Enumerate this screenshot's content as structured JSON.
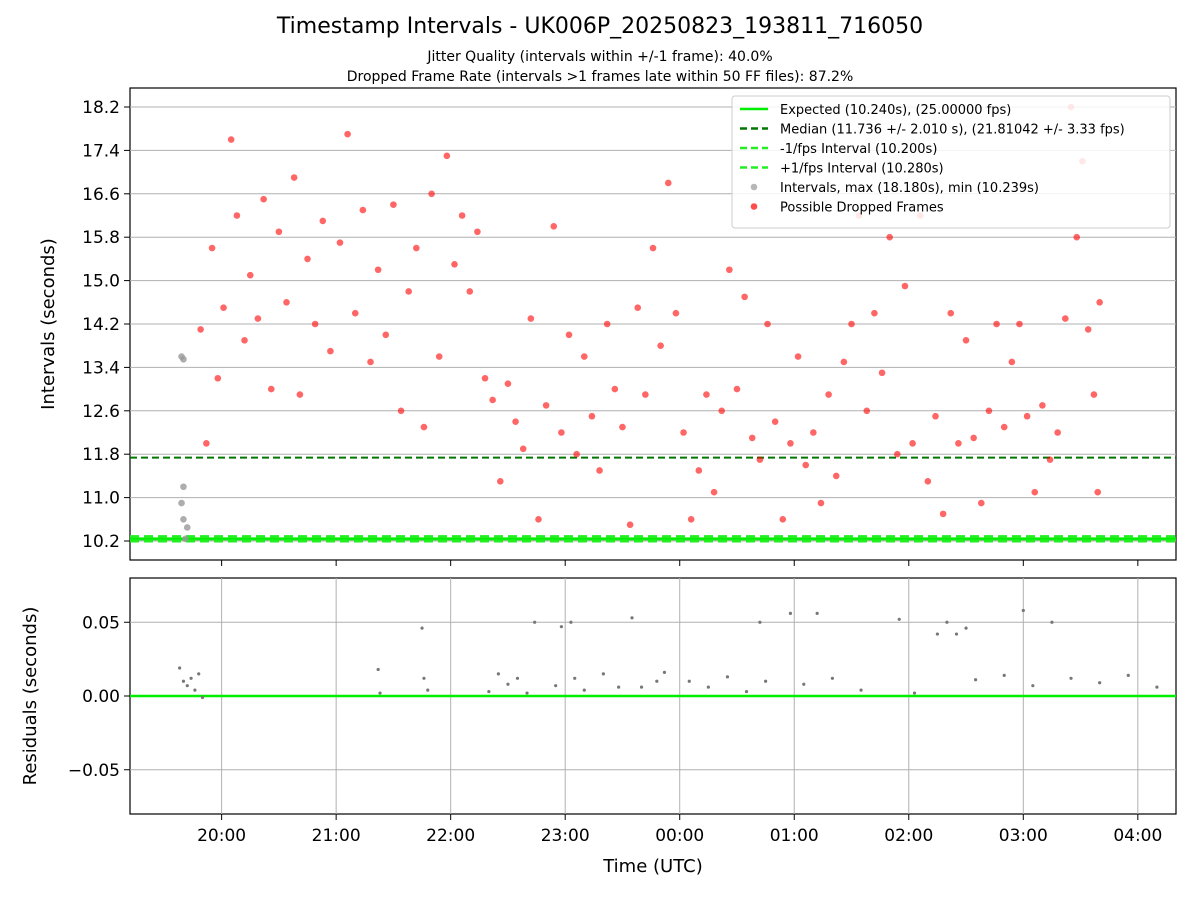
{
  "title": "Timestamp Intervals - UK006P_20250823_193811_716050",
  "subtitle1": "Jitter Quality (intervals within +/-1 frame): 40.0%",
  "subtitle2": "Dropped Frame Rate (intervals >1 frames late within 50 FF files): 87.2%",
  "colors": {
    "expected": "#00ee00",
    "median": "#007700",
    "interval_band": "#22ee22",
    "intervals": "#999999",
    "dropped": "#ff0000",
    "residuals": "#777777"
  },
  "chart_data": [
    {
      "type": "scatter",
      "name": "intervals",
      "xlabel": "",
      "ylabel": "Intervals (seconds)",
      "xlim": [
        "19:12",
        "04:20"
      ],
      "ylim": [
        9.85,
        18.55
      ],
      "yticks": [
        "10.2",
        "11.0",
        "11.8",
        "12.6",
        "13.4",
        "14.2",
        "15.0",
        "15.8",
        "16.6",
        "17.4",
        "18.2"
      ],
      "grid": true,
      "legend_position": "top-right",
      "lines": [
        {
          "label": "Expected (10.240s), (25.00000 fps)",
          "y": 10.24,
          "style": "solid"
        },
        {
          "label": "Median (11.736 +/- 2.010 s), (21.81042 +/- 3.33 fps)",
          "y": 11.736,
          "style": "dashed"
        },
        {
          "label": "-1/fps Interval (10.200s)",
          "y": 10.2,
          "style": "dashed"
        },
        {
          "label": "+1/fps Interval (10.280s)",
          "y": 10.28,
          "style": "dashed"
        }
      ],
      "series": [
        {
          "name": "Intervals, max (18.180s), min (10.239s)",
          "points": [
            [
              "19:39",
              13.6
            ],
            [
              "19:39",
              10.9
            ],
            [
              "19:40",
              10.6
            ],
            [
              "19:40",
              11.2
            ],
            [
              "19:41",
              10.24
            ],
            [
              "19:42",
              10.45
            ],
            [
              "19:40",
              13.55
            ]
          ]
        },
        {
          "name": "Possible Dropped Frames",
          "points": [
            [
              "19:49",
              14.1
            ],
            [
              "19:52",
              12.0
            ],
            [
              "19:55",
              15.6
            ],
            [
              "19:58",
              13.2
            ],
            [
              "20:01",
              14.5
            ],
            [
              "20:05",
              17.6
            ],
            [
              "20:08",
              16.2
            ],
            [
              "20:12",
              13.9
            ],
            [
              "20:15",
              15.1
            ],
            [
              "20:19",
              14.3
            ],
            [
              "20:22",
              16.5
            ],
            [
              "20:26",
              13.0
            ],
            [
              "20:30",
              15.9
            ],
            [
              "20:34",
              14.6
            ],
            [
              "20:38",
              16.9
            ],
            [
              "20:41",
              12.9
            ],
            [
              "20:45",
              15.4
            ],
            [
              "20:49",
              14.2
            ],
            [
              "20:53",
              16.1
            ],
            [
              "20:57",
              13.7
            ],
            [
              "21:02",
              15.7
            ],
            [
              "21:06",
              17.7
            ],
            [
              "21:10",
              14.4
            ],
            [
              "21:14",
              16.3
            ],
            [
              "21:18",
              13.5
            ],
            [
              "21:22",
              15.2
            ],
            [
              "21:26",
              14.0
            ],
            [
              "21:30",
              16.4
            ],
            [
              "21:34",
              12.6
            ],
            [
              "21:38",
              14.8
            ],
            [
              "21:42",
              15.6
            ],
            [
              "21:46",
              12.3
            ],
            [
              "21:50",
              16.6
            ],
            [
              "21:54",
              13.6
            ],
            [
              "21:58",
              17.3
            ],
            [
              "22:02",
              15.3
            ],
            [
              "22:06",
              16.2
            ],
            [
              "22:10",
              14.8
            ],
            [
              "22:14",
              15.9
            ],
            [
              "22:18",
              13.2
            ],
            [
              "22:22",
              12.8
            ],
            [
              "22:26",
              11.3
            ],
            [
              "22:30",
              13.1
            ],
            [
              "22:34",
              12.4
            ],
            [
              "22:38",
              11.9
            ],
            [
              "22:42",
              14.3
            ],
            [
              "22:46",
              10.6
            ],
            [
              "22:50",
              12.7
            ],
            [
              "22:54",
              16.0
            ],
            [
              "22:58",
              12.2
            ],
            [
              "23:02",
              14.0
            ],
            [
              "23:06",
              11.8
            ],
            [
              "23:10",
              13.6
            ],
            [
              "23:14",
              12.5
            ],
            [
              "23:18",
              11.5
            ],
            [
              "23:22",
              14.2
            ],
            [
              "23:26",
              13.0
            ],
            [
              "23:30",
              12.3
            ],
            [
              "23:34",
              10.5
            ],
            [
              "23:38",
              14.5
            ],
            [
              "23:42",
              12.9
            ],
            [
              "23:46",
              15.6
            ],
            [
              "23:50",
              13.8
            ],
            [
              "23:54",
              16.8
            ],
            [
              "23:58",
              14.4
            ],
            [
              "00:02",
              12.2
            ],
            [
              "00:06",
              10.6
            ],
            [
              "00:10",
              11.5
            ],
            [
              "00:14",
              12.9
            ],
            [
              "00:18",
              11.1
            ],
            [
              "00:22",
              12.6
            ],
            [
              "00:26",
              15.2
            ],
            [
              "00:30",
              13.0
            ],
            [
              "00:34",
              14.7
            ],
            [
              "00:38",
              12.1
            ],
            [
              "00:42",
              11.7
            ],
            [
              "00:46",
              14.2
            ],
            [
              "00:50",
              12.4
            ],
            [
              "00:54",
              10.6
            ],
            [
              "00:58",
              12.0
            ],
            [
              "01:02",
              13.6
            ],
            [
              "01:06",
              11.6
            ],
            [
              "01:10",
              12.2
            ],
            [
              "01:14",
              10.9
            ],
            [
              "01:18",
              12.9
            ],
            [
              "01:22",
              11.4
            ],
            [
              "01:26",
              13.5
            ],
            [
              "01:30",
              14.2
            ],
            [
              "01:34",
              16.2
            ],
            [
              "01:38",
              12.6
            ],
            [
              "01:42",
              14.4
            ],
            [
              "01:46",
              13.3
            ],
            [
              "01:50",
              15.8
            ],
            [
              "01:54",
              11.8
            ],
            [
              "01:58",
              14.9
            ],
            [
              "02:02",
              12.0
            ],
            [
              "02:06",
              16.2
            ],
            [
              "02:10",
              11.3
            ],
            [
              "02:14",
              12.5
            ],
            [
              "02:18",
              10.7
            ],
            [
              "02:22",
              14.4
            ],
            [
              "02:26",
              12.0
            ],
            [
              "02:30",
              13.9
            ],
            [
              "02:34",
              12.1
            ],
            [
              "02:38",
              10.9
            ],
            [
              "02:42",
              12.6
            ],
            [
              "02:46",
              14.2
            ],
            [
              "02:50",
              12.3
            ],
            [
              "02:54",
              13.5
            ],
            [
              "02:58",
              14.2
            ],
            [
              "03:02",
              12.5
            ],
            [
              "03:06",
              11.1
            ],
            [
              "03:10",
              12.7
            ],
            [
              "03:14",
              11.7
            ],
            [
              "03:18",
              12.2
            ],
            [
              "03:22",
              14.3
            ],
            [
              "03:25",
              18.2
            ],
            [
              "03:28",
              15.8
            ],
            [
              "03:31",
              17.2
            ],
            [
              "03:34",
              14.1
            ],
            [
              "03:37",
              12.9
            ],
            [
              "03:39",
              11.1
            ],
            [
              "03:40",
              14.6
            ]
          ]
        }
      ]
    },
    {
      "type": "scatter",
      "name": "residuals",
      "xlabel": "Time (UTC)",
      "ylabel": "Residuals (seconds)",
      "xlim": [
        "19:12",
        "04:20"
      ],
      "ylim": [
        -0.08,
        0.08
      ],
      "yticks": [
        "0.05",
        "0.00",
        "−0.05"
      ],
      "xticks": [
        "20:00",
        "21:00",
        "22:00",
        "23:00",
        "00:00",
        "01:00",
        "02:00",
        "03:00",
        "04:00"
      ],
      "grid": true,
      "zero_line": 0,
      "points": [
        [
          "19:38",
          0.019
        ],
        [
          "19:40",
          0.01
        ],
        [
          "19:42",
          0.007
        ],
        [
          "19:44",
          0.012
        ],
        [
          "19:46",
          0.004
        ],
        [
          "19:48",
          0.015
        ],
        [
          "19:50",
          -0.001
        ],
        [
          "21:22",
          0.018
        ],
        [
          "21:23",
          0.002
        ],
        [
          "21:45",
          0.046
        ],
        [
          "21:46",
          0.012
        ],
        [
          "21:48",
          0.004
        ],
        [
          "22:20",
          0.003
        ],
        [
          "22:25",
          0.015
        ],
        [
          "22:30",
          0.008
        ],
        [
          "22:35",
          0.012
        ],
        [
          "22:40",
          0.002
        ],
        [
          "22:44",
          0.05
        ],
        [
          "22:55",
          0.007
        ],
        [
          "22:58",
          0.047
        ],
        [
          "23:03",
          0.05
        ],
        [
          "23:05",
          0.012
        ],
        [
          "23:10",
          0.004
        ],
        [
          "23:20",
          0.015
        ],
        [
          "23:28",
          0.006
        ],
        [
          "23:35",
          0.053
        ],
        [
          "23:40",
          0.006
        ],
        [
          "23:48",
          0.01
        ],
        [
          "23:52",
          0.016
        ],
        [
          "00:05",
          0.01
        ],
        [
          "00:15",
          0.006
        ],
        [
          "00:25",
          0.013
        ],
        [
          "00:35",
          0.003
        ],
        [
          "00:42",
          0.05
        ],
        [
          "00:45",
          0.01
        ],
        [
          "00:58",
          0.056
        ],
        [
          "01:05",
          0.008
        ],
        [
          "01:12",
          0.056
        ],
        [
          "01:20",
          0.012
        ],
        [
          "01:35",
          0.004
        ],
        [
          "01:55",
          0.052
        ],
        [
          "02:03",
          0.002
        ],
        [
          "02:15",
          0.042
        ],
        [
          "02:20",
          0.05
        ],
        [
          "02:25",
          0.042
        ],
        [
          "02:30",
          0.046
        ],
        [
          "02:35",
          0.011
        ],
        [
          "02:50",
          0.014
        ],
        [
          "03:00",
          0.058
        ],
        [
          "03:05",
          0.007
        ],
        [
          "03:15",
          0.05
        ],
        [
          "03:25",
          0.012
        ],
        [
          "03:40",
          0.009
        ],
        [
          "03:55",
          0.014
        ],
        [
          "04:10",
          0.006
        ]
      ]
    }
  ]
}
